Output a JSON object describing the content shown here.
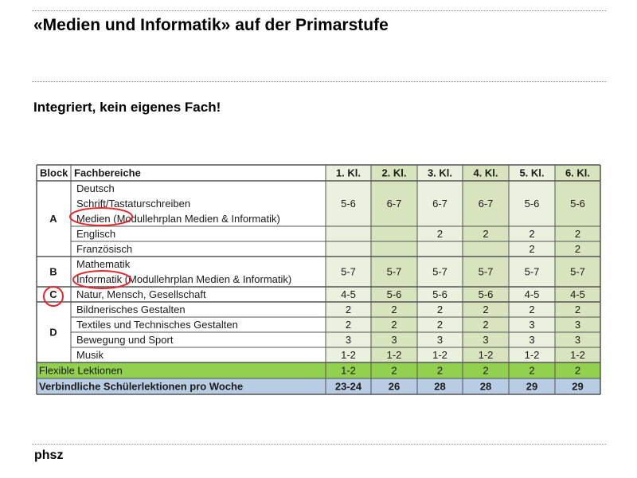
{
  "slide": {
    "title": "«Medien und Informatik» auf der Primarstufe",
    "subtitle": "Integriert, kein eigenes Fach!",
    "footer_logo": "phsz"
  },
  "table": {
    "headers": [
      "Block",
      "Fachbereiche",
      "1. Kl.",
      "2. Kl.",
      "3. Kl.",
      "4. Kl.",
      "5. Kl.",
      "6. Kl."
    ],
    "blocks": [
      {
        "label": "A",
        "rows": [
          {
            "subjects": [
              "Deutsch",
              "Schrift/Tastaturschreiben",
              "Medien (Modullehrplan Medien & Informatik)"
            ],
            "values": [
              "5-6",
              "6-7",
              "6-7",
              "6-7",
              "5-6",
              "5-6"
            ]
          },
          {
            "subjects": [
              "Englisch"
            ],
            "values": [
              "",
              "",
              "2",
              "2",
              "2",
              "2"
            ]
          },
          {
            "subjects": [
              "Französisch"
            ],
            "values": [
              "",
              "",
              "",
              "",
              "2",
              "2"
            ]
          }
        ]
      },
      {
        "label": "B",
        "rows": [
          {
            "subjects": [
              "Mathematik",
              "Informatik (Modullehrplan Medien & Informatik)"
            ],
            "values": [
              "5-7",
              "5-7",
              "5-7",
              "5-7",
              "5-7",
              "5-7"
            ]
          }
        ]
      },
      {
        "label": "C",
        "rows": [
          {
            "subjects": [
              "Natur, Mensch, Gesellschaft"
            ],
            "values": [
              "4-5",
              "5-6",
              "5-6",
              "5-6",
              "4-5",
              "4-5"
            ]
          }
        ]
      },
      {
        "label": "D",
        "rows": [
          {
            "subjects": [
              "Bildnerisches Gestalten"
            ],
            "values": [
              "2",
              "2",
              "2",
              "2",
              "2",
              "2"
            ]
          },
          {
            "subjects": [
              "Textiles und Technisches Gestalten"
            ],
            "values": [
              "2",
              "2",
              "2",
              "2",
              "3",
              "3"
            ]
          },
          {
            "subjects": [
              "Bewegung und Sport"
            ],
            "values": [
              "3",
              "3",
              "3",
              "3",
              "3",
              "3"
            ]
          },
          {
            "subjects": [
              "Musik"
            ],
            "values": [
              "1-2",
              "1-2",
              "1-2",
              "1-2",
              "1-2",
              "1-2"
            ]
          }
        ]
      }
    ],
    "flexible": {
      "label": "Flexible Lektionen",
      "values": [
        "1-2",
        "2",
        "2",
        "2",
        "2",
        "2"
      ]
    },
    "total": {
      "label": "Verbindliche Schülerlektionen pro Woche",
      "values": [
        "23-24",
        "26",
        "28",
        "28",
        "29",
        "29"
      ]
    },
    "colors": {
      "grade_shade_light": "#eaf1de",
      "grade_shade_dark": "#d7e4bd",
      "flexible_green": "#92d050",
      "total_blue": "#b8cce4",
      "highlight_circle": "#e8262b"
    }
  }
}
